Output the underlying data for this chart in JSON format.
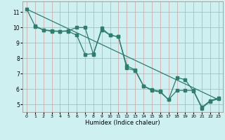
{
  "xlabel": "Humidex (Indice chaleur)",
  "background_color": "#cff0f0",
  "line_color": "#2e7d6e",
  "grid_color": "#b8dada",
  "xlim": [
    -0.5,
    23.5
  ],
  "ylim": [
    4.5,
    11.7
  ],
  "x_ticks": [
    0,
    1,
    2,
    3,
    4,
    5,
    6,
    7,
    8,
    9,
    10,
    11,
    12,
    13,
    14,
    15,
    16,
    17,
    18,
    19,
    20,
    21,
    22,
    23
  ],
  "y_ticks": [
    5,
    6,
    7,
    8,
    9,
    10,
    11
  ],
  "series_straight": {
    "x": [
      0,
      23
    ],
    "y": [
      11.2,
      5.3
    ]
  },
  "series_with_markers1": {
    "x": [
      0,
      1,
      2,
      3,
      4,
      5,
      6,
      7,
      8,
      9,
      10,
      11,
      12,
      13,
      14,
      15,
      16,
      17,
      18,
      19,
      20,
      21,
      22,
      23
    ],
    "y": [
      11.2,
      10.1,
      9.85,
      9.8,
      9.75,
      9.8,
      10.0,
      10.0,
      8.25,
      9.95,
      9.5,
      9.4,
      7.5,
      7.25,
      6.2,
      5.95,
      5.85,
      5.3,
      5.9,
      5.9,
      5.9,
      4.8,
      5.25,
      5.4
    ]
  },
  "series_with_markers2": {
    "x": [
      1,
      2,
      3,
      4,
      5,
      6,
      7,
      8,
      9,
      10,
      11,
      12,
      13,
      14,
      15,
      16,
      17,
      18,
      19,
      20,
      21,
      22,
      23
    ],
    "y": [
      10.05,
      9.85,
      9.75,
      9.75,
      9.75,
      9.5,
      8.25,
      8.3,
      9.85,
      9.5,
      9.4,
      7.35,
      7.2,
      6.2,
      5.9,
      5.8,
      5.3,
      6.75,
      6.6,
      5.85,
      4.75,
      5.2,
      5.35
    ]
  }
}
